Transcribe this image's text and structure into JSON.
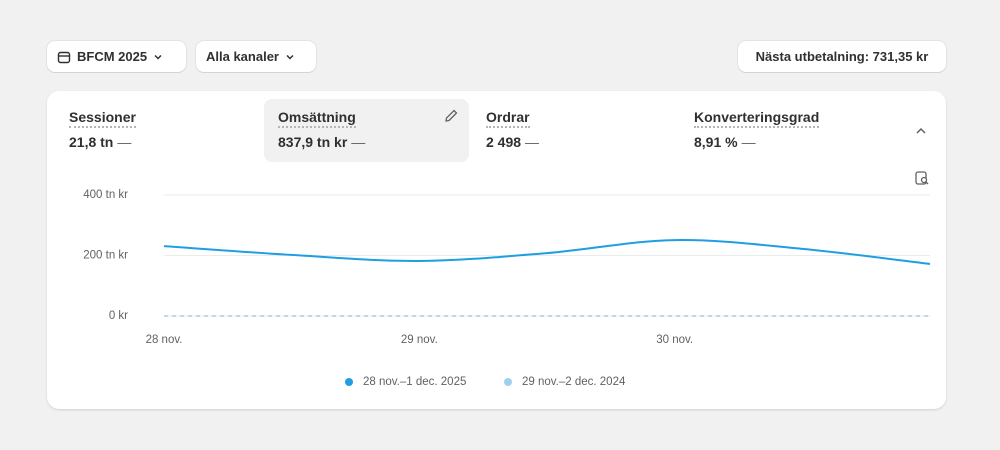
{
  "toolbar": {
    "date_range": "BFCM 2025",
    "channel": "Alla kanaler",
    "payout": "Nästa utbetalning: 731,35 kr"
  },
  "metrics": [
    {
      "label": "Sessioner",
      "value": "21,8 tn",
      "change": "—"
    },
    {
      "label": "Omsättning",
      "value": "837,9 tn kr",
      "change": "—"
    },
    {
      "label": "Ordrar",
      "value": "2 498",
      "change": "—"
    },
    {
      "label": "Konverteringsgrad",
      "value": "8,91 %",
      "change": "—"
    }
  ],
  "chart_data": {
    "type": "line",
    "categories": [
      "28 nov.",
      null,
      "29 nov.",
      null,
      "30 nov.",
      null,
      null
    ],
    "series": [
      {
        "name": "28 nov.–1 dec. 2025",
        "color": "#1f9ee3",
        "values": [
          231,
          202,
          182,
          208,
          251,
          222,
          172
        ]
      },
      {
        "name": "29 nov.–2 dec. 2024",
        "color": "#9fd0ee",
        "values": [
          0,
          0,
          0,
          0,
          0,
          0,
          0
        ]
      }
    ],
    "ylim": [
      0,
      400
    ],
    "yticks": [
      {
        "value": 0,
        "label": "0 kr"
      },
      {
        "value": 200,
        "label": "200 tn kr"
      },
      {
        "value": 400,
        "label": "400 tn kr"
      }
    ],
    "grid": true
  }
}
